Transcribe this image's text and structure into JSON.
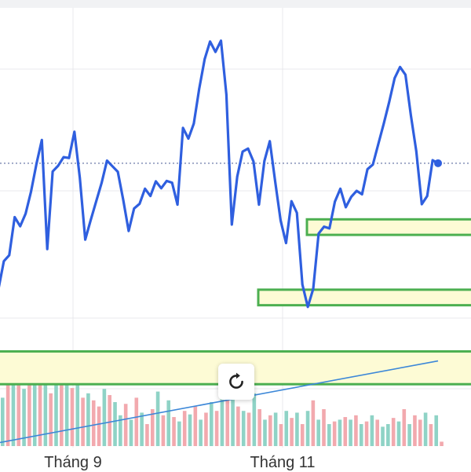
{
  "chart_data": {
    "type": "line",
    "x_tick_labels": [
      "Tháng 9",
      "Tháng 11"
    ],
    "colors": {
      "price_line": "#2f5fdf",
      "volume_up": "#8fd3c6",
      "volume_down": "#f2a9ae",
      "trend_line": "#3d88d8",
      "zone_fill": "#fdfbd5",
      "zone_border": "#4caf50",
      "last_price_dotted": "#6b7aa8",
      "grid": "#e9e9ec"
    },
    "price_range": [
      -6.05,
      4.14
    ],
    "price_series": [
      -2.38,
      -1.73,
      -1.59,
      -0.71,
      -0.92,
      -0.63,
      -0.12,
      0.52,
      1.08,
      -1.45,
      0.35,
      0.48,
      0.68,
      0.66,
      1.27,
      0.2,
      -1.23,
      -0.78,
      -0.35,
      0.08,
      0.6,
      0.47,
      0.34,
      -0.31,
      -1.03,
      -0.51,
      -0.4,
      -0.05,
      -0.22,
      0.12,
      -0.04,
      0.13,
      0.09,
      -0.42,
      1.36,
      1.11,
      1.46,
      2.27,
      2.95,
      3.36,
      3.12,
      3.38,
      2.13,
      -0.88,
      0.23,
      0.81,
      0.88,
      0.58,
      -0.42,
      0.59,
      1.05,
      0.11,
      -0.79,
      -1.31,
      -0.34,
      -0.61,
      -2.27,
      -2.79,
      -2.37,
      -1.09,
      -0.93,
      -0.97,
      -0.35,
      -0.05,
      -0.48,
      -0.24,
      -0.1,
      -0.18,
      0.4,
      0.51,
      0.99,
      1.46,
      1.96,
      2.51,
      2.77,
      2.59,
      1.65,
      0.82,
      -0.41,
      -0.22,
      0.61,
      0.54
    ],
    "last_price": 0.54,
    "zones": [
      {
        "low": -1.12,
        "high": -0.76
      },
      {
        "low": -2.75,
        "high": -2.39
      },
      {
        "low": -4.58,
        "high": -3.82
      }
    ],
    "trend_line": {
      "start": -5.93,
      "end": -4.04
    },
    "volume_series": [
      {
        "v": 0.55,
        "up": true
      },
      {
        "v": 0.7,
        "up": false
      },
      {
        "v": 0.75,
        "up": true
      },
      {
        "v": 0.8,
        "up": false
      },
      {
        "v": 0.65,
        "up": true
      },
      {
        "v": 0.82,
        "up": false
      },
      {
        "v": 0.95,
        "up": true
      },
      {
        "v": 0.7,
        "up": false
      },
      {
        "v": 0.85,
        "up": true
      },
      {
        "v": 0.6,
        "up": false
      },
      {
        "v": 0.88,
        "up": true
      },
      {
        "v": 0.72,
        "up": false
      },
      {
        "v": 0.8,
        "up": true
      },
      {
        "v": 0.66,
        "up": false
      },
      {
        "v": 0.75,
        "up": true
      },
      {
        "v": 0.55,
        "up": false
      },
      {
        "v": 0.6,
        "up": true
      },
      {
        "v": 0.52,
        "up": false
      },
      {
        "v": 0.45,
        "up": false
      },
      {
        "v": 0.65,
        "up": true
      },
      {
        "v": 0.58,
        "up": false
      },
      {
        "v": 0.5,
        "up": true
      },
      {
        "v": 0.35,
        "up": true
      },
      {
        "v": 0.48,
        "up": false
      },
      {
        "v": 0.3,
        "up": true
      },
      {
        "v": 0.55,
        "up": false
      },
      {
        "v": 0.38,
        "up": true
      },
      {
        "v": 0.25,
        "up": false
      },
      {
        "v": 0.42,
        "up": false
      },
      {
        "v": 0.62,
        "up": true
      },
      {
        "v": 0.35,
        "up": false
      },
      {
        "v": 0.52,
        "up": true
      },
      {
        "v": 0.33,
        "up": false
      },
      {
        "v": 0.28,
        "up": true
      },
      {
        "v": 0.4,
        "up": false
      },
      {
        "v": 0.36,
        "up": true
      },
      {
        "v": 0.45,
        "up": false
      },
      {
        "v": 0.3,
        "up": true
      },
      {
        "v": 0.38,
        "up": false
      },
      {
        "v": 0.5,
        "up": true
      },
      {
        "v": 0.4,
        "up": false
      },
      {
        "v": 0.58,
        "up": true
      },
      {
        "v": 0.82,
        "up": false
      },
      {
        "v": 0.55,
        "up": true
      },
      {
        "v": 0.45,
        "up": false
      },
      {
        "v": 0.4,
        "up": true
      },
      {
        "v": 0.38,
        "up": false
      },
      {
        "v": 0.6,
        "up": true
      },
      {
        "v": 0.42,
        "up": false
      },
      {
        "v": 0.3,
        "up": true
      },
      {
        "v": 0.35,
        "up": false
      },
      {
        "v": 0.38,
        "up": true
      },
      {
        "v": 0.25,
        "up": false
      },
      {
        "v": 0.4,
        "up": true
      },
      {
        "v": 0.32,
        "up": false
      },
      {
        "v": 0.38,
        "up": true
      },
      {
        "v": 0.25,
        "up": false
      },
      {
        "v": 0.4,
        "up": true
      },
      {
        "v": 0.52,
        "up": false
      },
      {
        "v": 0.3,
        "up": true
      },
      {
        "v": 0.42,
        "up": false
      },
      {
        "v": 0.25,
        "up": true
      },
      {
        "v": 0.28,
        "up": false
      },
      {
        "v": 0.3,
        "up": true
      },
      {
        "v": 0.33,
        "up": false
      },
      {
        "v": 0.3,
        "up": true
      },
      {
        "v": 0.35,
        "up": false
      },
      {
        "v": 0.25,
        "up": true
      },
      {
        "v": 0.28,
        "up": false
      },
      {
        "v": 0.35,
        "up": true
      },
      {
        "v": 0.3,
        "up": false
      },
      {
        "v": 0.22,
        "up": true
      },
      {
        "v": 0.25,
        "up": true
      },
      {
        "v": 0.32,
        "up": false
      },
      {
        "v": 0.28,
        "up": true
      },
      {
        "v": 0.42,
        "up": false
      },
      {
        "v": 0.25,
        "up": true
      },
      {
        "v": 0.35,
        "up": false
      },
      {
        "v": 0.3,
        "up": false
      },
      {
        "v": 0.38,
        "up": true
      },
      {
        "v": 0.25,
        "up": false
      },
      {
        "v": 0.35,
        "up": true
      },
      {
        "v": 0.05,
        "up": false
      }
    ]
  }
}
